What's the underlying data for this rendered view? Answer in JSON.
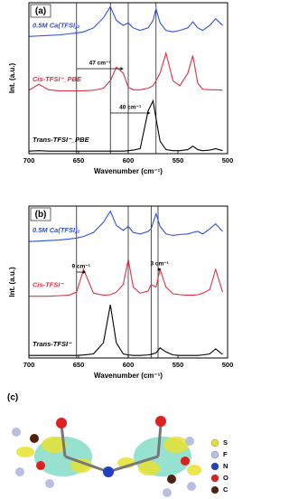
{
  "chart_data": [
    {
      "type": "line",
      "panel": "(a)",
      "xlabel": "Wavenumber (cm⁻¹)",
      "ylabel": "Int. (a.u.)",
      "xlim": [
        700,
        500
      ],
      "xticks": [
        700,
        650,
        600,
        550,
        500
      ],
      "ylim": [
        0,
        3
      ],
      "x": [
        700,
        690,
        680,
        670,
        660,
        652,
        645,
        635,
        625,
        618,
        612,
        605,
        600,
        595,
        588,
        580,
        575,
        572,
        568,
        562,
        555,
        548,
        540,
        535,
        530,
        525,
        518,
        512,
        505
      ],
      "vlines": [
        652,
        618,
        600,
        572
      ],
      "arrows": [
        {
          "from": 652,
          "to": 605,
          "label": "47 cm⁻¹"
        },
        {
          "from": 618,
          "to": 578,
          "label": "40 cm⁻¹"
        }
      ],
      "series": [
        {
          "name": "0.5M Ca(TFSI)₂",
          "color": "#3050e0",
          "values": [
            2.33,
            2.34,
            2.35,
            2.36,
            2.38,
            2.4,
            2.42,
            2.5,
            2.7,
            2.92,
            2.65,
            2.55,
            2.6,
            2.5,
            2.45,
            2.5,
            2.65,
            2.88,
            2.6,
            2.45,
            2.42,
            2.45,
            2.5,
            2.62,
            2.5,
            2.45,
            2.55,
            2.68,
            2.55
          ]
        },
        {
          "name": "Cis-TFSI⁻_PBE",
          "color": "#e03040",
          "values": [
            1.26,
            1.38,
            1.27,
            1.25,
            1.25,
            1.25,
            1.25,
            1.26,
            1.3,
            1.45,
            1.72,
            1.6,
            1.32,
            1.27,
            1.27,
            1.3,
            1.35,
            1.45,
            1.6,
            2.0,
            1.45,
            1.35,
            1.6,
            1.95,
            1.4,
            1.28,
            1.27,
            1.27,
            1.26
          ]
        },
        {
          "name": "Trans-TFSI⁻_PBE",
          "color": "#000000",
          "values": [
            0.05,
            0.06,
            0.05,
            0.05,
            0.05,
            0.05,
            0.05,
            0.05,
            0.05,
            0.05,
            0.05,
            0.05,
            0.06,
            0.07,
            0.1,
            0.85,
            1.05,
            0.7,
            0.25,
            0.08,
            0.06,
            0.06,
            0.08,
            0.15,
            0.08,
            0.06,
            0.07,
            0.1,
            0.06
          ]
        }
      ]
    },
    {
      "type": "line",
      "panel": "(b)",
      "xlabel": "Wavenumber (cm⁻¹)",
      "ylabel": "Int. (a.u.)",
      "xlim": [
        700,
        500
      ],
      "xticks": [
        700,
        650,
        600,
        550,
        500
      ],
      "ylim": [
        0,
        3
      ],
      "x": [
        700,
        690,
        680,
        670,
        660,
        652,
        645,
        635,
        625,
        618,
        612,
        605,
        600,
        595,
        588,
        580,
        577,
        572,
        568,
        562,
        555,
        548,
        540,
        535,
        530,
        525,
        518,
        512,
        505
      ],
      "vlines": [
        652,
        600,
        577,
        570
      ],
      "arrows": [
        {
          "from": 652,
          "to": 643,
          "label": "9 cm⁻¹"
        },
        {
          "from": 570,
          "to": 567,
          "label": "3 cm⁻¹"
        }
      ],
      "series": [
        {
          "name": "0.5M Ca(TFSI)₂",
          "color": "#3050e0",
          "values": [
            2.3,
            2.31,
            2.32,
            2.33,
            2.35,
            2.37,
            2.4,
            2.48,
            2.68,
            2.9,
            2.62,
            2.52,
            2.6,
            2.48,
            2.45,
            2.5,
            2.55,
            2.85,
            2.6,
            2.45,
            2.42,
            2.44,
            2.45,
            2.48,
            2.5,
            2.45,
            2.55,
            2.65,
            2.5
          ]
        },
        {
          "name": "Cis-TFSI⁻",
          "color": "#e03040",
          "values": [
            1.22,
            1.22,
            1.22,
            1.23,
            1.24,
            1.3,
            1.75,
            1.28,
            1.24,
            1.25,
            1.3,
            1.45,
            1.95,
            1.4,
            1.28,
            1.32,
            1.45,
            1.4,
            1.75,
            1.4,
            1.27,
            1.25,
            1.24,
            1.24,
            1.25,
            1.28,
            1.35,
            1.75,
            1.3
          ]
        },
        {
          "name": "Trans-TFSI⁻",
          "color": "#000000",
          "values": [
            0.05,
            0.05,
            0.05,
            0.05,
            0.05,
            0.05,
            0.06,
            0.08,
            0.3,
            1.05,
            0.3,
            0.08,
            0.06,
            0.05,
            0.05,
            0.06,
            0.07,
            0.1,
            0.2,
            0.12,
            0.06,
            0.05,
            0.05,
            0.05,
            0.05,
            0.06,
            0.08,
            0.18,
            0.07
          ]
        }
      ]
    }
  ],
  "panel_c": {
    "label": "(c)",
    "legend": [
      "S",
      "F",
      "N",
      "O",
      "C"
    ]
  }
}
